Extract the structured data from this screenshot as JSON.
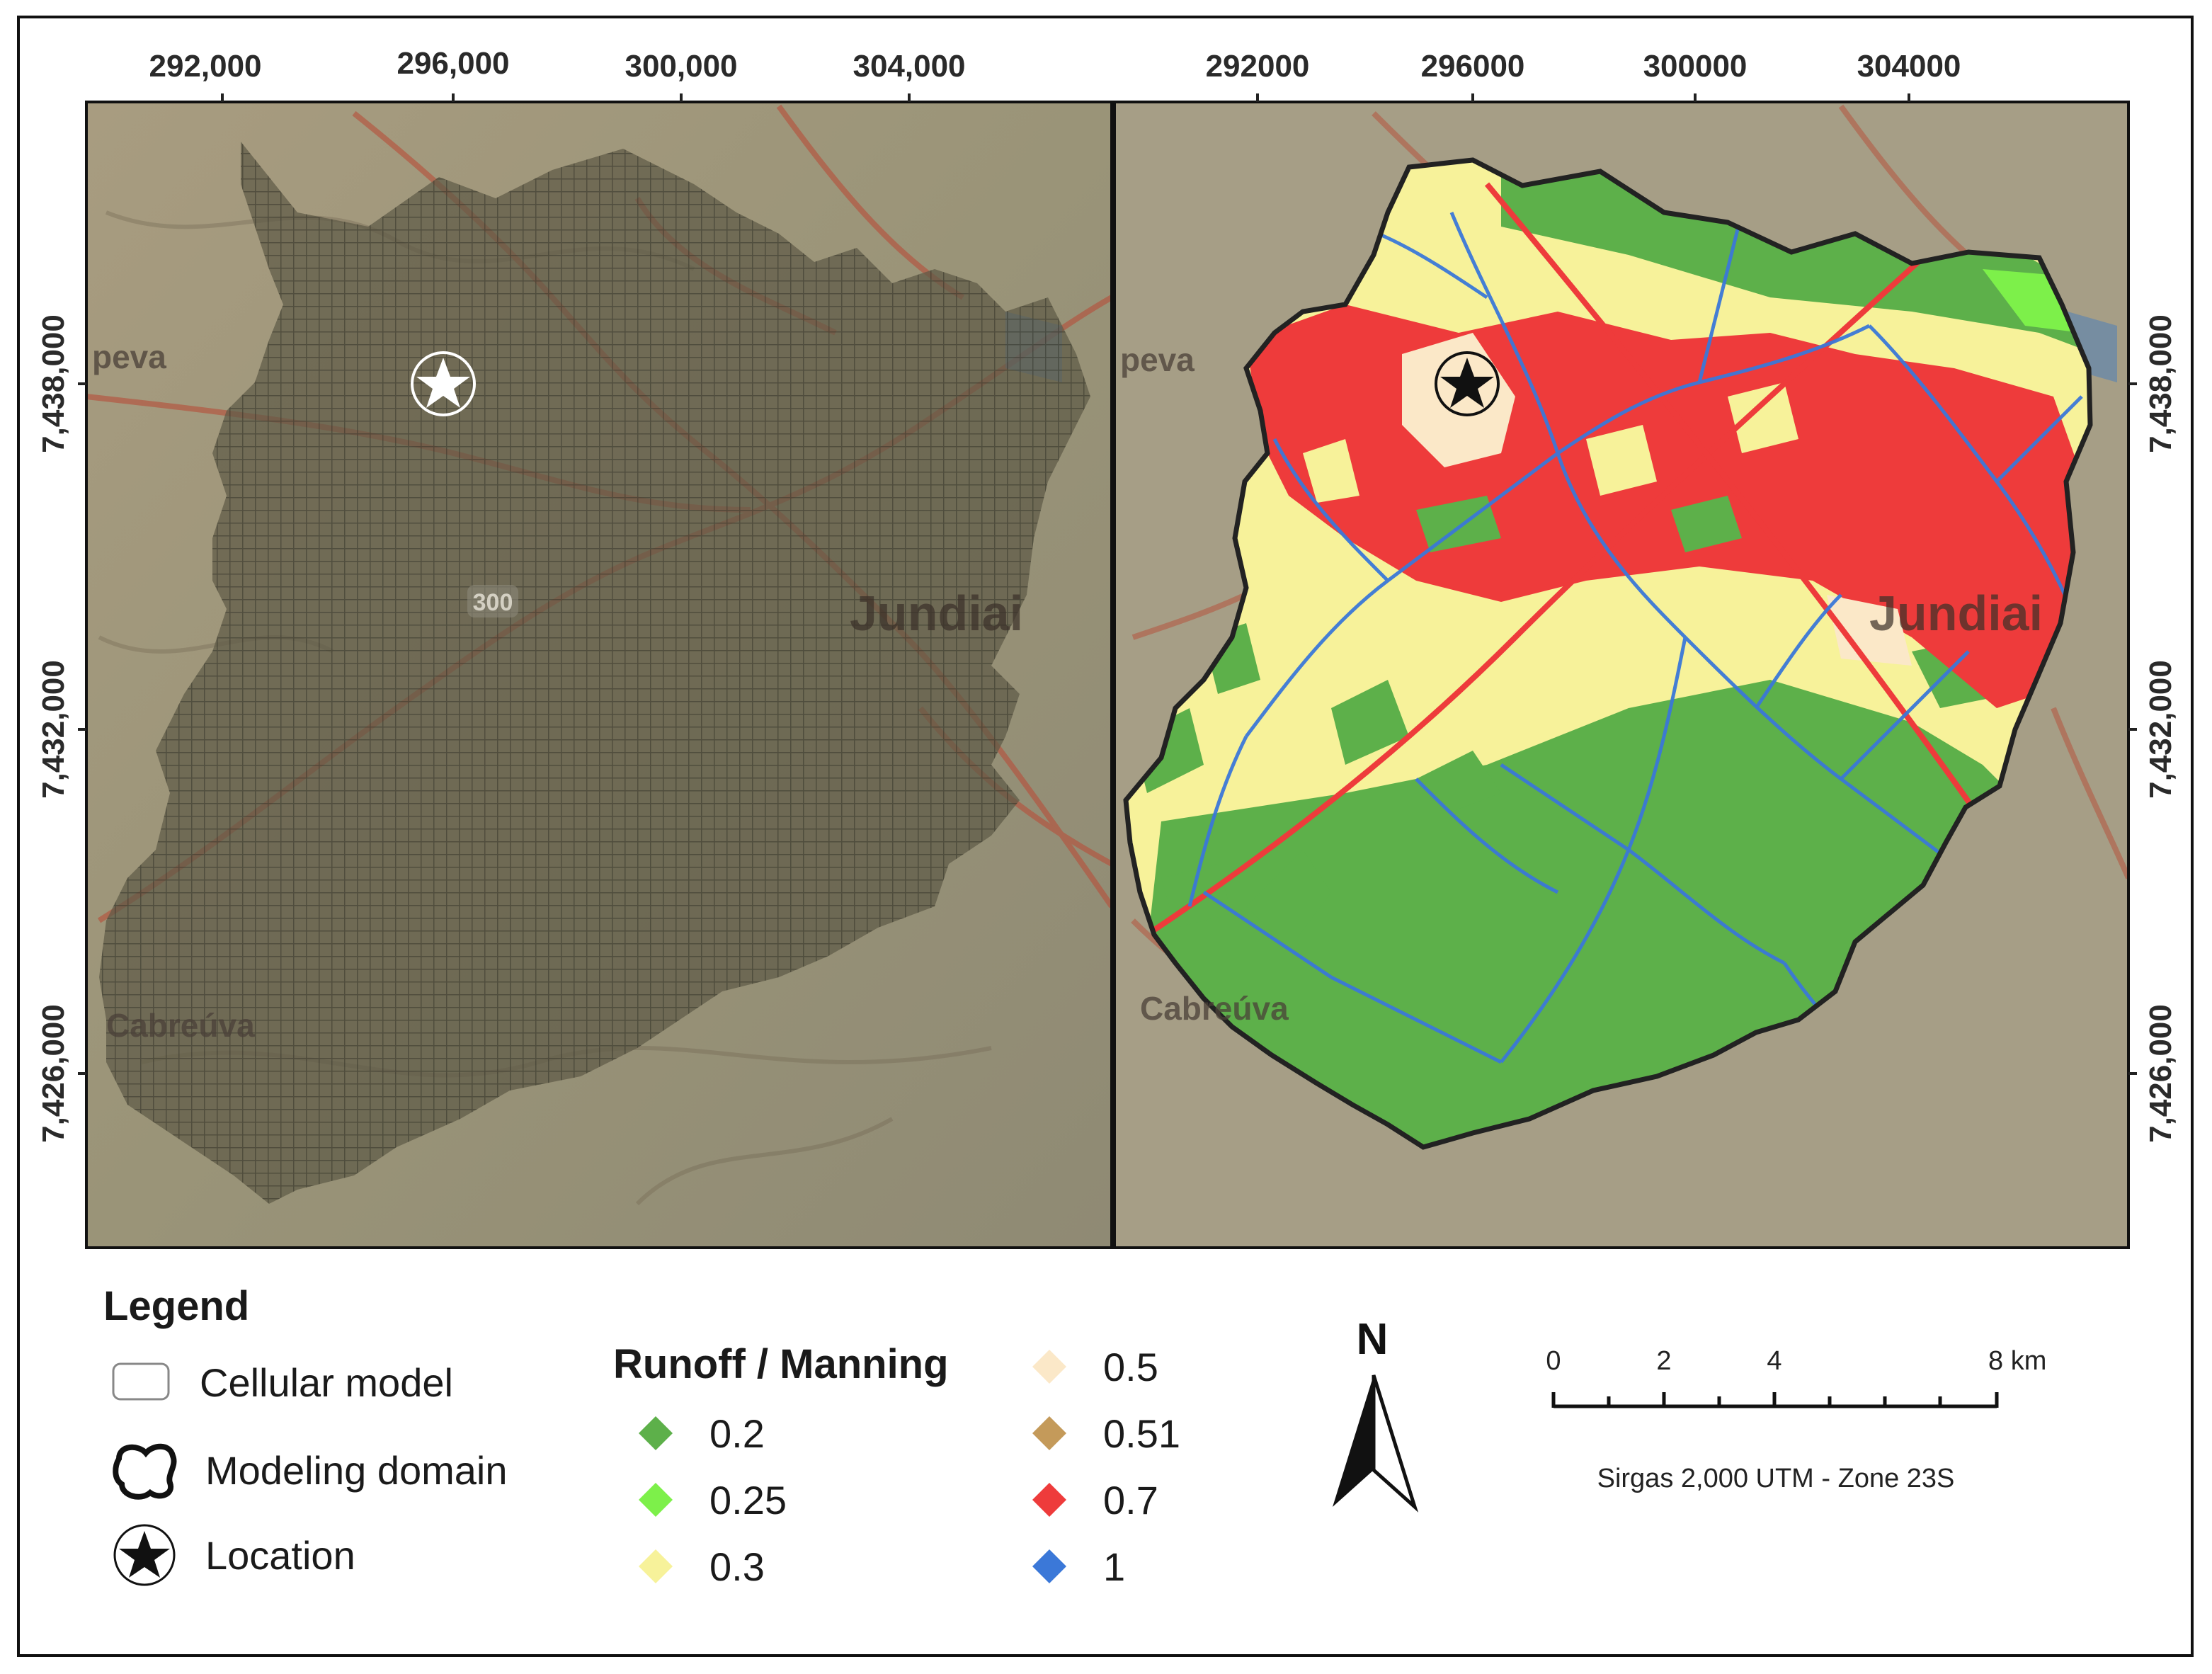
{
  "left_map": {
    "x_ticks": [
      "292,000",
      "296,000",
      "300,000",
      "304,000"
    ],
    "y_ticks": [
      "7,438,000",
      "7,432,000",
      "7,426,000"
    ],
    "places": {
      "peva": "peva",
      "jundiai": "Jundiai",
      "cabreuva": "Cabreúva",
      "road": "300"
    }
  },
  "right_map": {
    "x_ticks": [
      "292000",
      "296000",
      "300000",
      "304000"
    ],
    "y_ticks": [
      "7,438,000",
      "7,432,000",
      "7,426,000"
    ],
    "places": {
      "peva": "peva",
      "jundiai": "Jundiai",
      "cabreuva": "Cabreúva"
    }
  },
  "legend": {
    "title": "Legend",
    "items": [
      {
        "label": "Cellular model",
        "symbol": "rounded-rectangle"
      },
      {
        "label": "Modeling domain",
        "symbol": "domain-outline-icon"
      },
      {
        "label": "Location",
        "symbol": "star-icon"
      }
    ]
  },
  "runoff": {
    "title": "Runoff / Manning",
    "classes": [
      {
        "value": "0.2",
        "color": "#5db04a"
      },
      {
        "value": "0.25",
        "color": "#7df04a"
      },
      {
        "value": "0.3",
        "color": "#f7f29a"
      },
      {
        "value": "0.5",
        "color": "#fbe8c8"
      },
      {
        "value": "0.51",
        "color": "#c49a5a"
      },
      {
        "value": "0.7",
        "color": "#ee3b3b"
      },
      {
        "value": "1",
        "color": "#3b78d8"
      }
    ]
  },
  "north_arrow": {
    "label": "N"
  },
  "scale_bar": {
    "labels": [
      "0",
      "2",
      "4",
      "8 km"
    ],
    "projection": "Sirgas 2,000 UTM - Zone 23S"
  }
}
